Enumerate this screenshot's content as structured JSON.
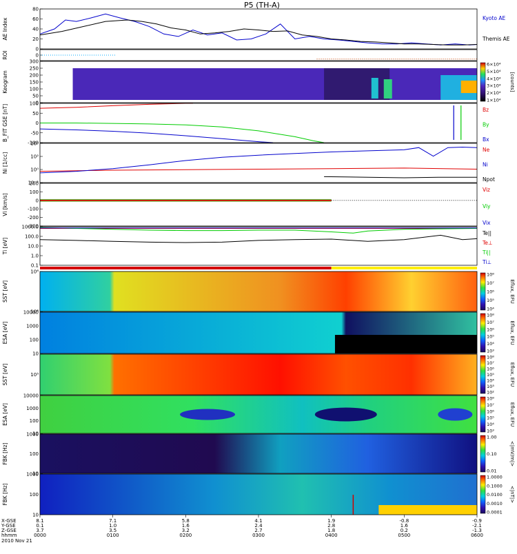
{
  "title": "P5 (TH-A)",
  "colors": {
    "red": "#e00000",
    "green": "#00cc00",
    "blue": "#0000cc",
    "black": "#000000",
    "orbit_red": "#d40000",
    "orbit_yellow": "#ffee00"
  },
  "x_axis": {
    "row_labels": [
      "X-GSE",
      "Y-GSE",
      "Z-GSE",
      "hhmm",
      "2010 Nov 21"
    ],
    "columns": [
      {
        "x": "8.1",
        "y": "0.1",
        "z": "3.7",
        "t": "0000"
      },
      {
        "x": "7.1",
        "y": "1.0",
        "z": "3.5",
        "t": "0100"
      },
      {
        "x": "5.8",
        "y": "1.6",
        "z": "3.2",
        "t": "0200"
      },
      {
        "x": "4.1",
        "y": "2.4",
        "z": "2.7",
        "t": "0300"
      },
      {
        "x": "1.9",
        "y": "2.8",
        "z": "1.8",
        "t": "0400"
      },
      {
        "x": "-0.8",
        "y": "1.6",
        "z": "0.2",
        "t": "0500"
      },
      {
        "x": "-0.9",
        "y": "-2.1",
        "z": "-1.3",
        "t": "0600"
      }
    ]
  },
  "chart_data": [
    {
      "type": "line",
      "panel": "ae",
      "ylabel": "AE Index",
      "ylim": [
        0,
        80
      ],
      "ticks": [
        "0",
        "20",
        "40",
        "60",
        "80"
      ],
      "series": [
        {
          "name": "Kyoto AE",
          "color": "#0000cc",
          "x": [
            0,
            0.2,
            0.35,
            0.5,
            0.7,
            0.9,
            1.1,
            1.3,
            1.5,
            1.7,
            1.9,
            2.1,
            2.3,
            2.5,
            2.7,
            2.9,
            3.1,
            3.3,
            3.5,
            3.7,
            3.9,
            4.1,
            4.3,
            4.5,
            4.7,
            4.9,
            5.1,
            5.3,
            5.5,
            5.7,
            5.9,
            6.0
          ],
          "y": [
            30,
            40,
            58,
            55,
            62,
            70,
            62,
            55,
            45,
            30,
            25,
            38,
            28,
            32,
            18,
            20,
            30,
            50,
            20,
            25,
            20,
            18,
            15,
            12,
            10,
            10,
            12,
            10,
            8,
            10,
            8,
            9
          ]
        },
        {
          "name": "Themis AE",
          "color": "#000000",
          "x": [
            0,
            0.3,
            0.6,
            0.9,
            1.2,
            1.4,
            1.6,
            1.8,
            2.0,
            2.2,
            2.4,
            2.6,
            2.8,
            3.0,
            3.2,
            3.4,
            3.6,
            3.8,
            4.0,
            4.2,
            4.4,
            4.6,
            4.8,
            5.0,
            5.2,
            5.4,
            5.6,
            5.8,
            6.0
          ],
          "y": [
            28,
            35,
            45,
            55,
            58,
            55,
            50,
            42,
            38,
            30,
            32,
            35,
            40,
            38,
            35,
            36,
            28,
            25,
            20,
            18,
            15,
            14,
            12,
            10,
            10,
            9,
            8,
            8,
            9
          ]
        }
      ]
    },
    {
      "type": "scatter",
      "panel": "roi",
      "ylabel": "ROI",
      "ticks": [
        "0"
      ],
      "series": [
        {
          "name": "",
          "color": "#00aaff",
          "x_range": [
            0,
            1.05
          ],
          "level": 0.5
        },
        {
          "name": "",
          "color": "#cc4400",
          "x_range": [
            3.8,
            6.0
          ],
          "level": 0.15
        }
      ]
    },
    {
      "type": "heatmap",
      "panel": "keogram",
      "ylabel": "Keogram",
      "ylim": [
        0,
        300
      ],
      "ticks": [
        "0",
        "50",
        "100",
        "150",
        "200",
        "250",
        "300"
      ],
      "colorbar": {
        "label": "[counts]",
        "ticks": [
          "1×10⁴",
          "2×10⁴",
          "3×10⁴",
          "4×10⁴",
          "5×10⁴",
          "6×10⁴"
        ]
      }
    },
    {
      "type": "line",
      "panel": "bfield",
      "ylabel": "B_FIT GSE [nT]",
      "ylim": [
        -100,
        100
      ],
      "ticks": [
        "-100",
        "-50",
        "0",
        "50",
        "100"
      ],
      "series": [
        {
          "name": "Bz",
          "color": "#e00000",
          "x": [
            0,
            0.5,
            1.0,
            1.5,
            2.0,
            2.1
          ],
          "y": [
            75,
            80,
            88,
            95,
            100,
            100
          ]
        },
        {
          "name": "By",
          "color": "#00cc00",
          "x": [
            0,
            0.5,
            1.0,
            1.5,
            2.0,
            2.5,
            3.0,
            3.5,
            3.75,
            3.9
          ],
          "y": [
            0,
            0,
            -2,
            -5,
            -10,
            -20,
            -40,
            -70,
            -90,
            -100
          ]
        },
        {
          "name": "Bx",
          "color": "#0000cc",
          "x": [
            0,
            0.5,
            1.0,
            1.5,
            2.0,
            2.5,
            3.0,
            3.2
          ],
          "y": [
            -30,
            -35,
            -42,
            -52,
            -65,
            -80,
            -95,
            -100
          ]
        }
      ]
    },
    {
      "type": "line",
      "panel": "density",
      "ylabel": "Ni [1/cc]",
      "ticks": [
        "10⁻²",
        "10⁰",
        "10²",
        "10⁴"
      ],
      "series": [
        {
          "name": "Ne",
          "color": "#e00000",
          "x": [
            0,
            1,
            2,
            3,
            4,
            5,
            6
          ],
          "y": [
            -0.2,
            0,
            0.1,
            0.2,
            0.3,
            0.4,
            0.2
          ]
        },
        {
          "name": "Ni",
          "color": "#0000cc",
          "x": [
            0,
            0.5,
            1.0,
            1.5,
            2.0,
            2.5,
            3.0,
            3.5,
            4.0,
            4.5,
            5.0,
            5.2,
            5.4,
            5.6,
            5.8,
            6.0
          ],
          "y": [
            -0.5,
            -0.2,
            0.3,
            1,
            1.8,
            2.4,
            2.8,
            3.1,
            3.4,
            3.6,
            3.8,
            4.2,
            2.6,
            4.2,
            4.3,
            4.2
          ]
        },
        {
          "name": "Npot",
          "color": "#000000",
          "x": [
            3.9,
            4.5,
            5.0,
            5.5,
            6.0
          ],
          "y": [
            -1.2,
            -1.3,
            -1.4,
            -1.3,
            -1.3
          ]
        }
      ]
    },
    {
      "type": "line",
      "panel": "velocity",
      "ylabel": "Vi [km/s]",
      "ylim": [
        -300,
        200
      ],
      "ticks": [
        "-300",
        "-200",
        "-100",
        "0",
        "100",
        "200"
      ],
      "series": [
        {
          "name": "Viz",
          "color": "#e00000",
          "x": [
            0,
            4.0
          ],
          "y": [
            0,
            0
          ]
        },
        {
          "name": "Viy",
          "color": "#00cc00",
          "x": [
            0,
            4.0
          ],
          "y": [
            0,
            0
          ]
        },
        {
          "name": "Vix",
          "color": "#0000cc",
          "x": [
            0,
            4.0
          ],
          "y": [
            0,
            0
          ]
        }
      ]
    },
    {
      "type": "line",
      "panel": "temperature",
      "ylabel": "Ti [eV]",
      "ticks": [
        "0.1",
        "1.0",
        "10.0",
        "100.0",
        "1000.0"
      ],
      "series": [
        {
          "name": "Te||",
          "color": "#000000",
          "x": [
            0,
            0.5,
            1.0,
            1.5,
            2.0,
            2.5,
            3.0,
            3.5,
            4.0,
            4.5,
            5.0,
            5.5,
            5.8,
            6.0
          ],
          "y": [
            1.8,
            1.7,
            1.6,
            1.5,
            1.45,
            1.5,
            1.7,
            1.8,
            1.85,
            1.6,
            1.8,
            2.3,
            1.8,
            1.9
          ]
        },
        {
          "name": "Te⊥",
          "color": "#e00000",
          "x": [
            0,
            6.0
          ],
          "y": [
            3.1,
            3.1
          ]
        },
        {
          "name": "Ti||",
          "color": "#00cc00",
          "x": [
            0,
            0.5,
            1.0,
            1.5,
            2.0,
            2.5,
            3.0,
            3.5,
            4.0,
            4.3,
            4.5,
            5.0,
            5.5,
            6.0
          ],
          "y": [
            3.2,
            3.1,
            3.0,
            2.9,
            2.85,
            2.85,
            2.9,
            2.9,
            2.7,
            2.55,
            2.8,
            3.0,
            3.05,
            3.1
          ]
        },
        {
          "name": "Ti⊥",
          "color": "#0000cc",
          "x": [
            0,
            6.0
          ],
          "y": [
            3.15,
            3.15
          ]
        }
      ]
    },
    {
      "type": "heatmap",
      "panel": "sst_ion",
      "ylabel": "SST [eV]",
      "ticks": [
        "10⁵",
        "10⁶"
      ],
      "colorbar": {
        "label": "Eflux, EFU",
        "ticks": [
          "10⁴",
          "10⁵",
          "10⁶",
          "10⁷",
          "10⁸"
        ]
      }
    },
    {
      "type": "heatmap",
      "panel": "esa_ion",
      "ylabel": "ESA [eV]",
      "ticks": [
        "10",
        "100",
        "1000",
        "10000"
      ],
      "colorbar": {
        "label": "Eflux, EFU",
        "ticks": [
          "10³",
          "10⁴",
          "10⁵",
          "10⁶",
          "10⁷",
          "10⁸"
        ]
      }
    },
    {
      "type": "heatmap",
      "panel": "sst_elec",
      "ylabel": "SST [eV]",
      "ticks": [
        "10⁵"
      ],
      "colorbar": {
        "label": "Eflux, EFU",
        "ticks": [
          "10²",
          "10³",
          "10⁴",
          "10⁵",
          "10⁶",
          "10⁷",
          "10⁸"
        ]
      }
    },
    {
      "type": "heatmap",
      "panel": "esa_elec",
      "ylabel": "ESA [eV]",
      "ticks": [
        "10",
        "100",
        "1000",
        "10000"
      ],
      "colorbar": {
        "label": "Eflux, EFU",
        "ticks": [
          "10³",
          "10⁴",
          "10⁵",
          "10⁶",
          "10⁷",
          "10⁸"
        ]
      }
    },
    {
      "type": "heatmap",
      "panel": "fbk_e",
      "ylabel": "FBK [Hz]",
      "ticks": [
        "10",
        "100",
        "1000"
      ],
      "colorbar": {
        "label": "<|mV/m|>",
        "ticks": [
          "0.01",
          "0.10",
          "1.00"
        ]
      }
    },
    {
      "type": "heatmap",
      "panel": "fbk_b",
      "ylabel": "FBK [Hz]",
      "ticks": [
        "10",
        "100",
        "1000"
      ],
      "colorbar": {
        "label": "<|nT|>",
        "ticks": [
          "0.0001",
          "0.0010",
          "0.0100",
          "0.1000",
          "1.0000"
        ]
      }
    }
  ]
}
